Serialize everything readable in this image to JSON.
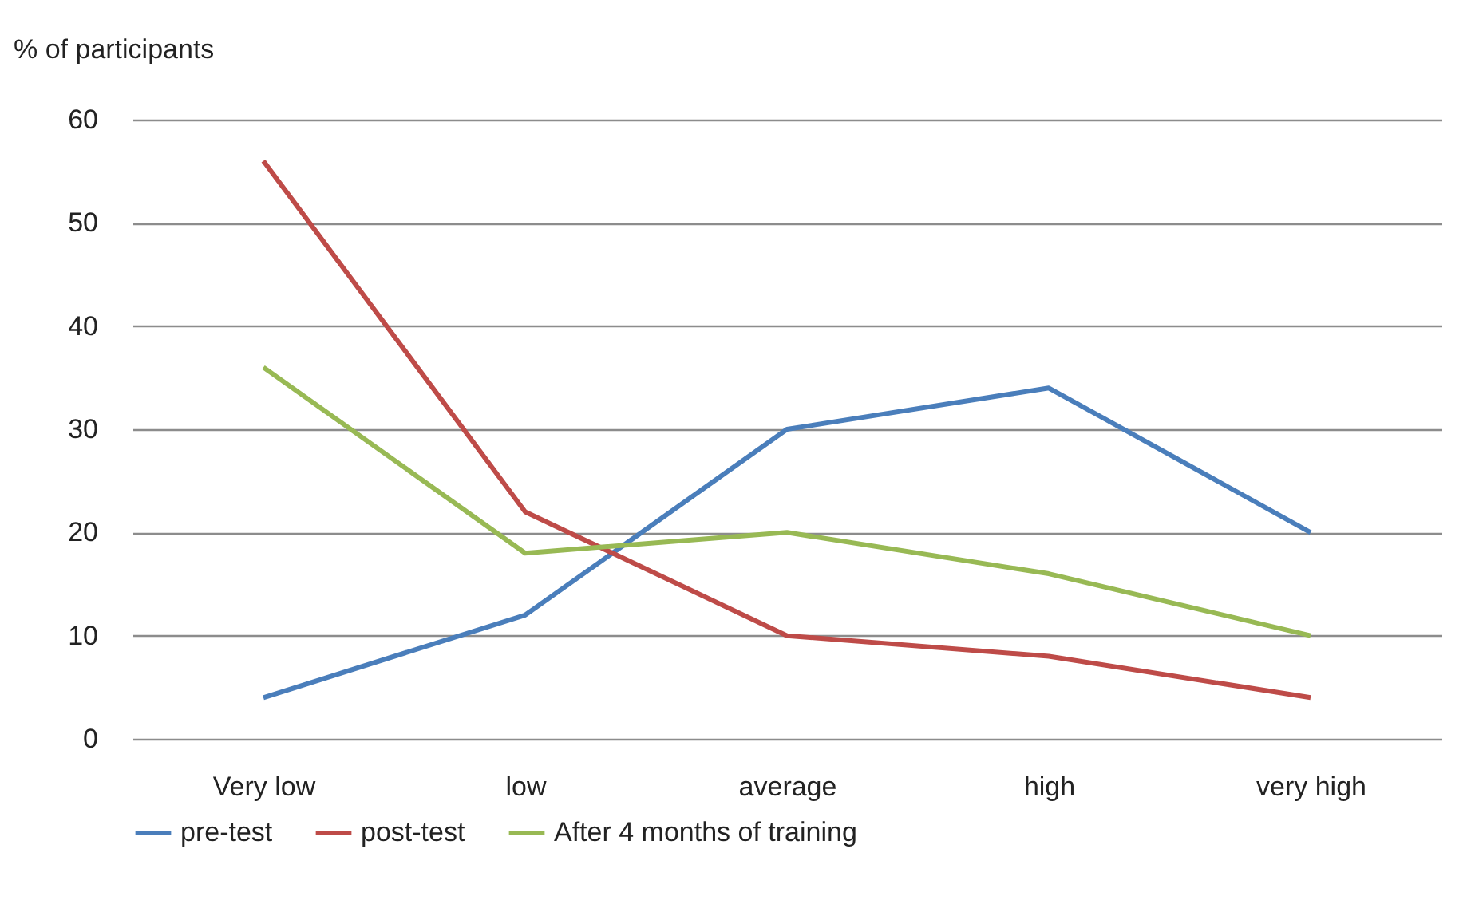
{
  "chart_data": {
    "type": "line",
    "ylabel": "% of participants",
    "categories": [
      "Very low",
      "low",
      "average",
      "high",
      "very high"
    ],
    "series": [
      {
        "name": "pre-test",
        "color": "#4a7ebb",
        "values": [
          4,
          12,
          30,
          34,
          20
        ]
      },
      {
        "name": "post-test",
        "color": "#be4b48",
        "values": [
          56,
          22,
          10,
          8,
          4
        ]
      },
      {
        "name": "After 4 months  of training",
        "color": "#98b954",
        "values": [
          36,
          18,
          20,
          16,
          10
        ]
      }
    ],
    "ylim": [
      0,
      60
    ],
    "yticks": [
      0,
      10,
      20,
      30,
      40,
      50,
      60
    ],
    "grid": "y",
    "legend": "bottom",
    "marker": "none",
    "line_style": "solid"
  }
}
